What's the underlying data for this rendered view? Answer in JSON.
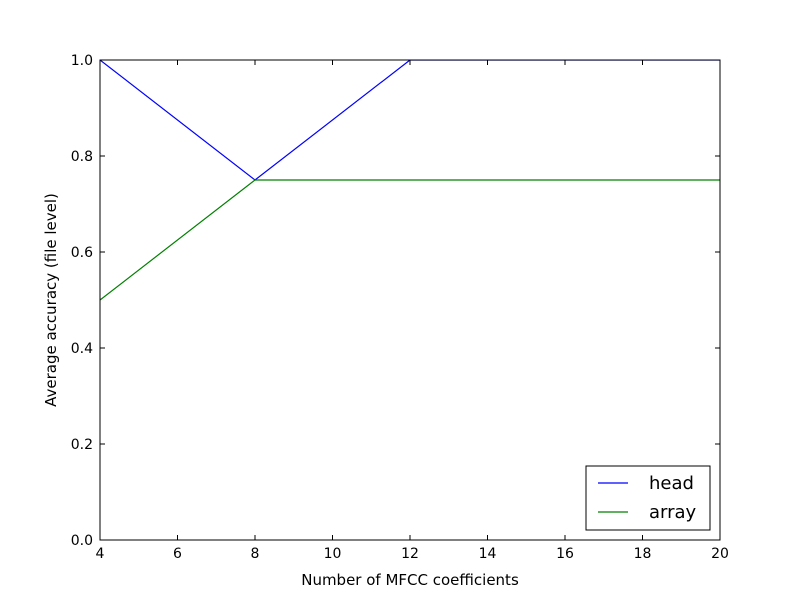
{
  "chart_data": {
    "type": "line",
    "title": "",
    "xlabel": "Number of MFCC coefficients",
    "ylabel": "Average accuracy (file level)",
    "xlim": [
      4,
      20
    ],
    "ylim": [
      0.0,
      1.0
    ],
    "xticks": [
      "4",
      "6",
      "8",
      "10",
      "12",
      "14",
      "16",
      "18",
      "20"
    ],
    "yticks": [
      "0.0",
      "0.2",
      "0.4",
      "0.6",
      "0.8",
      "1.0"
    ],
    "grid": false,
    "legend_position": "lower-right",
    "series": [
      {
        "name": "head",
        "color": "#0000ff",
        "x": [
          4,
          8,
          12,
          16,
          20
        ],
        "y": [
          1.0,
          0.75,
          1.0,
          1.0,
          1.0
        ]
      },
      {
        "name": "array",
        "color": "#008000",
        "x": [
          4,
          8,
          12,
          16,
          20
        ],
        "y": [
          0.5,
          0.75,
          0.75,
          0.75,
          0.75
        ]
      }
    ]
  }
}
